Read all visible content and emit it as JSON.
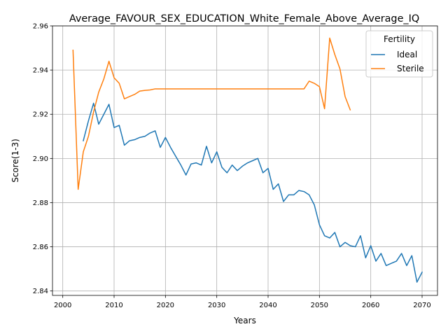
{
  "chart_data": {
    "type": "line",
    "title": "Average_FAVOUR_SEX_EDUCATION_White_Female_Above_Average_IQ",
    "xlabel": "Years",
    "ylabel": "Score(1-3)",
    "xlim": [
      1998,
      2073
    ],
    "ylim": [
      2.838,
      2.96
    ],
    "xticks": [
      2000,
      2010,
      2020,
      2030,
      2040,
      2050,
      2060,
      2070
    ],
    "yticks": [
      2.84,
      2.86,
      2.88,
      2.9,
      2.92,
      2.94,
      2.96
    ],
    "xtick_labels": [
      "2000",
      "2010",
      "2020",
      "2030",
      "2040",
      "2050",
      "2060",
      "2070"
    ],
    "ytick_labels": [
      "2.84",
      "2.86",
      "2.88",
      "2.90",
      "2.92",
      "2.94",
      "2.96"
    ],
    "grid": true,
    "legend": {
      "title": "Fertility",
      "position": "top-right"
    },
    "series": [
      {
        "name": "Ideal",
        "color": "#1f77b4",
        "x": [
          2004,
          2005,
          2006,
          2007,
          2008,
          2009,
          2010,
          2011,
          2012,
          2013,
          2014,
          2015,
          2016,
          2017,
          2018,
          2019,
          2020,
          2021,
          2022,
          2023,
          2024,
          2025,
          2026,
          2027,
          2028,
          2029,
          2030,
          2031,
          2032,
          2033,
          2034,
          2035,
          2036,
          2037,
          2038,
          2039,
          2040,
          2041,
          2042,
          2043,
          2044,
          2045,
          2046,
          2047,
          2048,
          2049,
          2050,
          2051,
          2052,
          2053,
          2054,
          2055,
          2056,
          2057,
          2058,
          2059,
          2060,
          2061,
          2062,
          2063,
          2064,
          2065,
          2066,
          2067,
          2068,
          2069,
          2070
        ],
        "y": [
          2.908,
          2.917,
          2.925,
          2.9155,
          2.92,
          2.9245,
          2.914,
          2.915,
          2.906,
          2.908,
          2.9085,
          2.9095,
          2.91,
          2.9115,
          2.9125,
          2.905,
          2.9095,
          2.905,
          2.901,
          2.897,
          2.8925,
          2.8975,
          2.898,
          2.897,
          2.9055,
          2.898,
          2.903,
          2.896,
          2.8935,
          2.897,
          2.8945,
          2.8965,
          2.898,
          2.899,
          2.9,
          2.8935,
          2.8955,
          2.886,
          2.8885,
          2.8805,
          2.8835,
          2.8835,
          2.8855,
          2.885,
          2.8835,
          2.879,
          2.87,
          2.865,
          2.864,
          2.8665,
          2.86,
          2.862,
          2.8605,
          2.86,
          2.865,
          2.855,
          2.8605,
          2.8535,
          2.857,
          2.8515,
          2.8525,
          2.8535,
          2.857,
          2.8515,
          2.856,
          2.844,
          2.8485
        ]
      },
      {
        "name": "Sterile",
        "color": "#ff7f0e",
        "x": [
          2002,
          2003,
          2004,
          2005,
          2006,
          2007,
          2008,
          2009,
          2010,
          2011,
          2012,
          2013,
          2014,
          2015,
          2016,
          2017,
          2018,
          2019,
          2020,
          2021,
          2022,
          2023,
          2024,
          2025,
          2026,
          2027,
          2028,
          2029,
          2030,
          2031,
          2032,
          2033,
          2034,
          2035,
          2036,
          2037,
          2038,
          2039,
          2040,
          2041,
          2042,
          2043,
          2044,
          2045,
          2046,
          2047,
          2048,
          2049,
          2050,
          2051,
          2052,
          2053,
          2054,
          2055,
          2056
        ],
        "y": [
          2.949,
          2.886,
          2.903,
          2.91,
          2.921,
          2.93,
          2.936,
          2.944,
          2.9365,
          2.934,
          2.927,
          2.928,
          2.929,
          2.9305,
          2.9308,
          2.931,
          2.9315,
          2.9315,
          2.9315,
          2.9315,
          2.9315,
          2.9315,
          2.9315,
          2.9315,
          2.9315,
          2.9315,
          2.9315,
          2.9315,
          2.9315,
          2.9315,
          2.9315,
          2.9315,
          2.9315,
          2.9315,
          2.9315,
          2.9315,
          2.9315,
          2.9315,
          2.9315,
          2.9315,
          2.9315,
          2.9315,
          2.9315,
          2.9315,
          2.9315,
          2.9315,
          2.935,
          2.934,
          2.9325,
          2.9225,
          2.9545,
          2.947,
          2.9405,
          2.928,
          2.922
        ]
      }
    ]
  }
}
